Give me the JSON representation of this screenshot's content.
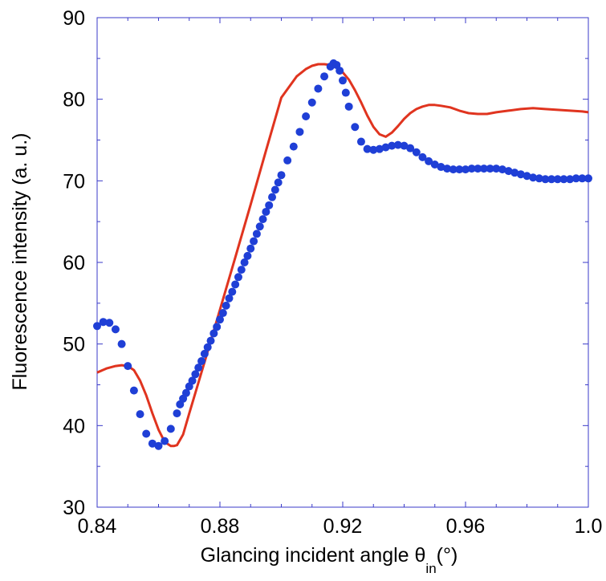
{
  "chart_data": {
    "type": "scatter",
    "xlabel": "Glancing incident angle θ",
    "xlabel_subscript": "in",
    "xlabel_unit": "(°)",
    "ylabel": "Fluorescence intensity (a. u.)",
    "xlim": [
      0.84,
      1.0
    ],
    "ylim": [
      30,
      90
    ],
    "x_ticks": [
      0.84,
      0.88,
      0.92,
      0.96,
      1.0
    ],
    "x_tick_labels": [
      "0.84",
      "0.88",
      "0.92",
      "0.96",
      "1.0"
    ],
    "y_ticks": [
      30,
      40,
      50,
      60,
      70,
      80,
      90
    ],
    "y_tick_labels": [
      "30",
      "40",
      "50",
      "60",
      "70",
      "80",
      "90"
    ],
    "grid": false,
    "colors": {
      "axis": "#3a3ac8",
      "points": "#1f3fd6",
      "line": "#e0341f"
    },
    "series": [
      {
        "kind": "points",
        "x": [
          0.84,
          0.842,
          0.844,
          0.846,
          0.848,
          0.85,
          0.852,
          0.854,
          0.856,
          0.858,
          0.86,
          0.862,
          0.864,
          0.866,
          0.867,
          0.868,
          0.869,
          0.87,
          0.871,
          0.872,
          0.873,
          0.874,
          0.875,
          0.876,
          0.877,
          0.878,
          0.879,
          0.88,
          0.881,
          0.882,
          0.883,
          0.884,
          0.885,
          0.886,
          0.887,
          0.888,
          0.889,
          0.89,
          0.891,
          0.892,
          0.893,
          0.894,
          0.895,
          0.896,
          0.897,
          0.898,
          0.899,
          0.9,
          0.902,
          0.904,
          0.906,
          0.908,
          0.91,
          0.912,
          0.914,
          0.916,
          0.917,
          0.918,
          0.919,
          0.92,
          0.921,
          0.922,
          0.924,
          0.926,
          0.928,
          0.93,
          0.932,
          0.934,
          0.936,
          0.938,
          0.94,
          0.942,
          0.944,
          0.946,
          0.948,
          0.95,
          0.952,
          0.954,
          0.956,
          0.958,
          0.96,
          0.962,
          0.964,
          0.966,
          0.968,
          0.97,
          0.972,
          0.974,
          0.976,
          0.978,
          0.98,
          0.982,
          0.984,
          0.986,
          0.988,
          0.99,
          0.992,
          0.994,
          0.996,
          0.998,
          1.0
        ],
        "y": [
          52.2,
          52.7,
          52.6,
          51.8,
          50.0,
          47.3,
          44.3,
          41.4,
          39.0,
          37.8,
          37.5,
          38.1,
          39.6,
          41.5,
          42.6,
          43.3,
          44.0,
          44.8,
          45.5,
          46.3,
          47.1,
          47.9,
          48.8,
          49.6,
          50.4,
          51.3,
          52.1,
          53.0,
          53.8,
          54.7,
          55.6,
          56.4,
          57.3,
          58.2,
          59.1,
          60.0,
          60.8,
          61.7,
          62.6,
          63.5,
          64.4,
          65.3,
          66.2,
          67.0,
          68.0,
          68.9,
          69.8,
          70.7,
          72.5,
          74.2,
          76.0,
          77.9,
          79.6,
          81.3,
          82.8,
          84.0,
          84.4,
          84.2,
          83.5,
          82.3,
          80.8,
          79.1,
          76.6,
          74.8,
          73.9,
          73.8,
          73.9,
          74.1,
          74.3,
          74.4,
          74.3,
          74.0,
          73.5,
          72.9,
          72.4,
          72.0,
          71.7,
          71.5,
          71.4,
          71.4,
          71.4,
          71.5,
          71.5,
          71.5,
          71.5,
          71.5,
          71.4,
          71.2,
          71.0,
          70.8,
          70.6,
          70.4,
          70.3,
          70.2,
          70.2,
          70.2,
          70.2,
          70.2,
          70.3,
          70.3,
          70.3
        ]
      },
      {
        "kind": "line",
        "x": [
          0.84,
          0.843,
          0.846,
          0.848,
          0.85,
          0.852,
          0.854,
          0.856,
          0.858,
          0.86,
          0.862,
          0.864,
          0.865,
          0.866,
          0.868,
          0.87,
          0.875,
          0.88,
          0.885,
          0.89,
          0.895,
          0.9,
          0.905,
          0.908,
          0.91,
          0.912,
          0.914,
          0.916,
          0.918,
          0.92,
          0.922,
          0.924,
          0.926,
          0.928,
          0.93,
          0.932,
          0.934,
          0.936,
          0.938,
          0.94,
          0.942,
          0.944,
          0.946,
          0.948,
          0.95,
          0.952,
          0.955,
          0.958,
          0.961,
          0.964,
          0.967,
          0.97,
          0.974,
          0.978,
          0.982,
          0.986,
          0.99,
          0.994,
          0.998,
          1.0
        ],
        "y": [
          46.5,
          47.0,
          47.3,
          47.4,
          47.3,
          46.8,
          45.5,
          43.7,
          41.5,
          39.5,
          38.0,
          37.5,
          37.5,
          37.6,
          38.9,
          41.5,
          47.8,
          54.2,
          60.6,
          67.1,
          73.7,
          80.2,
          82.8,
          83.7,
          84.1,
          84.3,
          84.3,
          84.2,
          83.9,
          83.3,
          82.4,
          81.1,
          79.6,
          78.0,
          76.6,
          75.7,
          75.4,
          75.9,
          76.7,
          77.6,
          78.3,
          78.8,
          79.1,
          79.3,
          79.3,
          79.2,
          79.0,
          78.6,
          78.3,
          78.2,
          78.2,
          78.4,
          78.6,
          78.8,
          78.9,
          78.8,
          78.7,
          78.6,
          78.5,
          78.4
        ]
      }
    ]
  }
}
